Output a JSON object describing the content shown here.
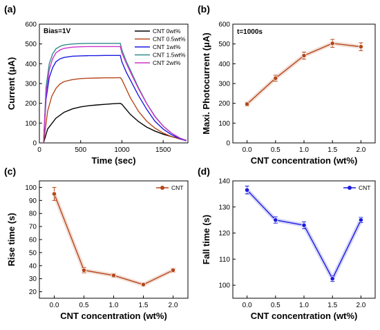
{
  "chart_data": [
    {
      "panel": "(a)",
      "type": "line",
      "xlabel": "Time (sec)",
      "ylabel": "Current (μA)",
      "xlim": [
        0,
        1800
      ],
      "ylim": [
        0,
        600
      ],
      "xticks": [
        0,
        500,
        1000,
        1500
      ],
      "yticks": [
        0,
        100,
        200,
        300,
        400,
        500,
        600
      ],
      "annotation": "Bias=1V",
      "legend_position": "top-right",
      "series": [
        {
          "name": "CNT 0wt%",
          "color": "#000000",
          "x": [
            50,
            100,
            200,
            300,
            400,
            500,
            600,
            700,
            800,
            900,
            980,
            1000,
            1100,
            1200,
            1300,
            1400,
            1500,
            1600,
            1700,
            1780
          ],
          "y": [
            0,
            70,
            125,
            155,
            172,
            182,
            188,
            192,
            195,
            198,
            200,
            195,
            145,
            108,
            80,
            60,
            44,
            32,
            22,
            14
          ]
        },
        {
          "name": "CNT 0.5wt%",
          "color": "#b5471b",
          "x": [
            50,
            100,
            150,
            200,
            250,
            300,
            400,
            500,
            600,
            700,
            800,
            900,
            980,
            1000,
            1100,
            1200,
            1300,
            1400,
            1500,
            1600,
            1700,
            1780
          ],
          "y": [
            0,
            160,
            235,
            275,
            298,
            310,
            320,
            325,
            327,
            328,
            329,
            329,
            330,
            320,
            230,
            160,
            110,
            75,
            50,
            32,
            20,
            12
          ]
        },
        {
          "name": "CNT 1wt%",
          "color": "#1a1ae0",
          "x": [
            50,
            80,
            120,
            160,
            200,
            250,
            300,
            400,
            500,
            600,
            700,
            800,
            900,
            980,
            1000,
            1050,
            1100,
            1200,
            1300,
            1400,
            1500,
            1600,
            1700,
            1780
          ],
          "y": [
            0,
            220,
            330,
            380,
            410,
            425,
            432,
            438,
            440,
            441,
            441,
            442,
            442,
            442,
            410,
            360,
            320,
            240,
            170,
            110,
            70,
            42,
            22,
            10
          ]
        },
        {
          "name": "CNT 1.5wt%",
          "color": "#2e8b8b",
          "x": [
            50,
            80,
            120,
            160,
            200,
            250,
            300,
            400,
            500,
            600,
            700,
            800,
            900,
            980,
            1000,
            1050,
            1100,
            1200,
            1300,
            1400,
            1500,
            1600,
            1700,
            1780
          ],
          "y": [
            0,
            280,
            400,
            450,
            475,
            488,
            495,
            500,
            502,
            503,
            503,
            503,
            503,
            503,
            470,
            415,
            370,
            280,
            200,
            135,
            85,
            50,
            25,
            12
          ]
        },
        {
          "name": "CNT 2wt%",
          "color": "#cc33cc",
          "x": [
            50,
            80,
            120,
            160,
            200,
            250,
            300,
            400,
            500,
            600,
            700,
            800,
            900,
            980,
            1000,
            1050,
            1100,
            1200,
            1300,
            1400,
            1500,
            1600,
            1700,
            1780
          ],
          "y": [
            0,
            250,
            370,
            425,
            455,
            470,
            478,
            484,
            486,
            487,
            487,
            487,
            487,
            487,
            455,
            405,
            360,
            275,
            198,
            133,
            85,
            50,
            25,
            12
          ]
        }
      ]
    },
    {
      "panel": "(b)",
      "type": "line",
      "xlabel": "CNT concentration (wt%)",
      "ylabel": "Maxi. Photocurrent (μA)",
      "xlim": [
        -0.25,
        2.25
      ],
      "ylim": [
        0,
        600
      ],
      "xticks": [
        "0.0",
        "0.5",
        "1.0",
        "1.5",
        "2.0"
      ],
      "yticks": [
        0,
        100,
        200,
        300,
        400,
        500,
        600
      ],
      "annotation": "t=1000s",
      "color": "#b5471b",
      "x": [
        0.0,
        0.5,
        1.0,
        1.5,
        2.0
      ],
      "y": [
        196,
        327,
        441,
        503,
        486
      ],
      "yerr": [
        10,
        15,
        18,
        20,
        20
      ]
    },
    {
      "panel": "(c)",
      "type": "line",
      "xlabel": "CNT concentration (wt%)",
      "ylabel": "Rise time (s)",
      "xlim": [
        -0.25,
        2.25
      ],
      "ylim": [
        15,
        105
      ],
      "xticks": [
        "0.0",
        "0.5",
        "1.0",
        "1.5",
        "2.0"
      ],
      "yticks": [
        20,
        30,
        40,
        50,
        60,
        70,
        80,
        90,
        100
      ],
      "legend": "CNT",
      "legend_position": "top-right",
      "color": "#b5471b",
      "x": [
        0.0,
        0.5,
        1.0,
        1.5,
        2.0
      ],
      "y": [
        95,
        36.5,
        32.5,
        25.5,
        36.5
      ],
      "yerr": [
        5,
        2,
        1.5,
        1.2,
        1.5
      ]
    },
    {
      "panel": "(d)",
      "type": "line",
      "xlabel": "CNT concentration (wt%)",
      "ylabel": "Fall time (s)",
      "xlim": [
        -0.25,
        2.25
      ],
      "ylim": [
        95,
        140
      ],
      "xticks": [
        "0.0",
        "0.5",
        "1.0",
        "1.5",
        "2.0"
      ],
      "yticks": [
        100,
        110,
        120,
        130,
        140
      ],
      "legend": "CNT",
      "legend_position": "top-right",
      "color": "#1a1ae0",
      "x": [
        0.0,
        0.5,
        1.0,
        1.5,
        2.0
      ],
      "y": [
        136.5,
        125,
        123,
        102.5,
        125
      ],
      "yerr": [
        1.5,
        1.2,
        1.3,
        1.0,
        1.0
      ]
    }
  ]
}
